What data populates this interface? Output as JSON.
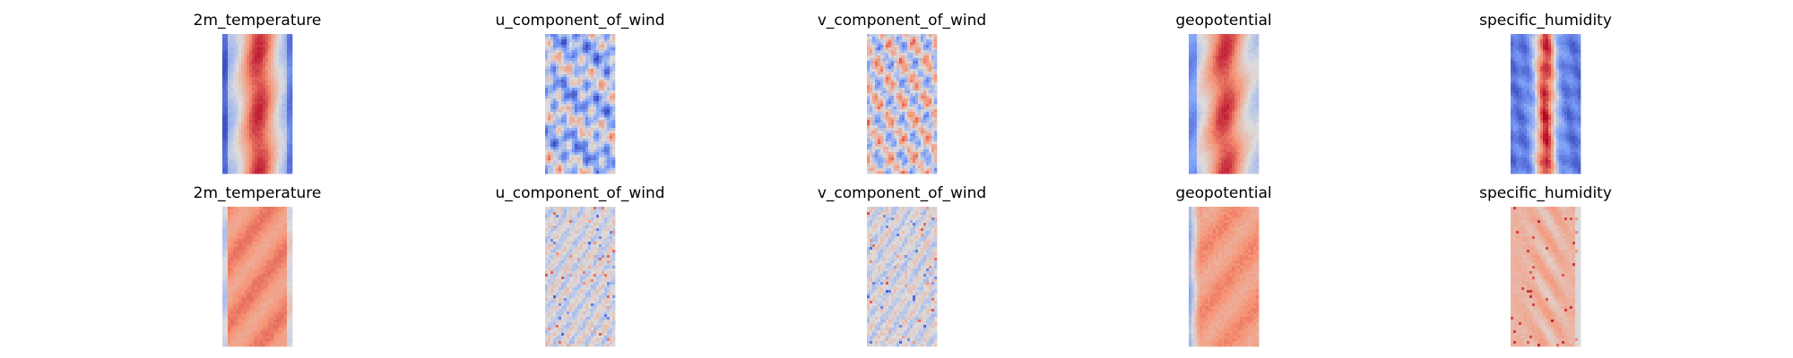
{
  "chart_data": {
    "type": "heatmap",
    "colormap": "coolwarm",
    "axes": "off",
    "grid": false,
    "legend": "none",
    "layout": {
      "rows": 2,
      "cols": 5
    },
    "rows": [
      {
        "panels": [
          {
            "title": "2m_temperature",
            "pattern": "warm_core",
            "seed": 11
          },
          {
            "title": "u_component_of_wind",
            "pattern": "wind_u",
            "seed": 23
          },
          {
            "title": "v_component_of_wind",
            "pattern": "wind_v",
            "seed": 37
          },
          {
            "title": "geopotential",
            "pattern": "geo",
            "seed": 41
          },
          {
            "title": "specific_humidity",
            "pattern": "humidity",
            "seed": 53
          }
        ]
      },
      {
        "panels": [
          {
            "title": "2m_temperature",
            "pattern": "warm_flat",
            "seed": 61
          },
          {
            "title": "u_component_of_wind",
            "pattern": "noise_neutral",
            "seed": 73
          },
          {
            "title": "v_component_of_wind",
            "pattern": "noise_neutral",
            "seed": 89
          },
          {
            "title": "geopotential",
            "pattern": "geo_flat",
            "seed": 97
          },
          {
            "title": "specific_humidity",
            "pattern": "humidity_flat",
            "seed": 103
          }
        ]
      }
    ]
  }
}
